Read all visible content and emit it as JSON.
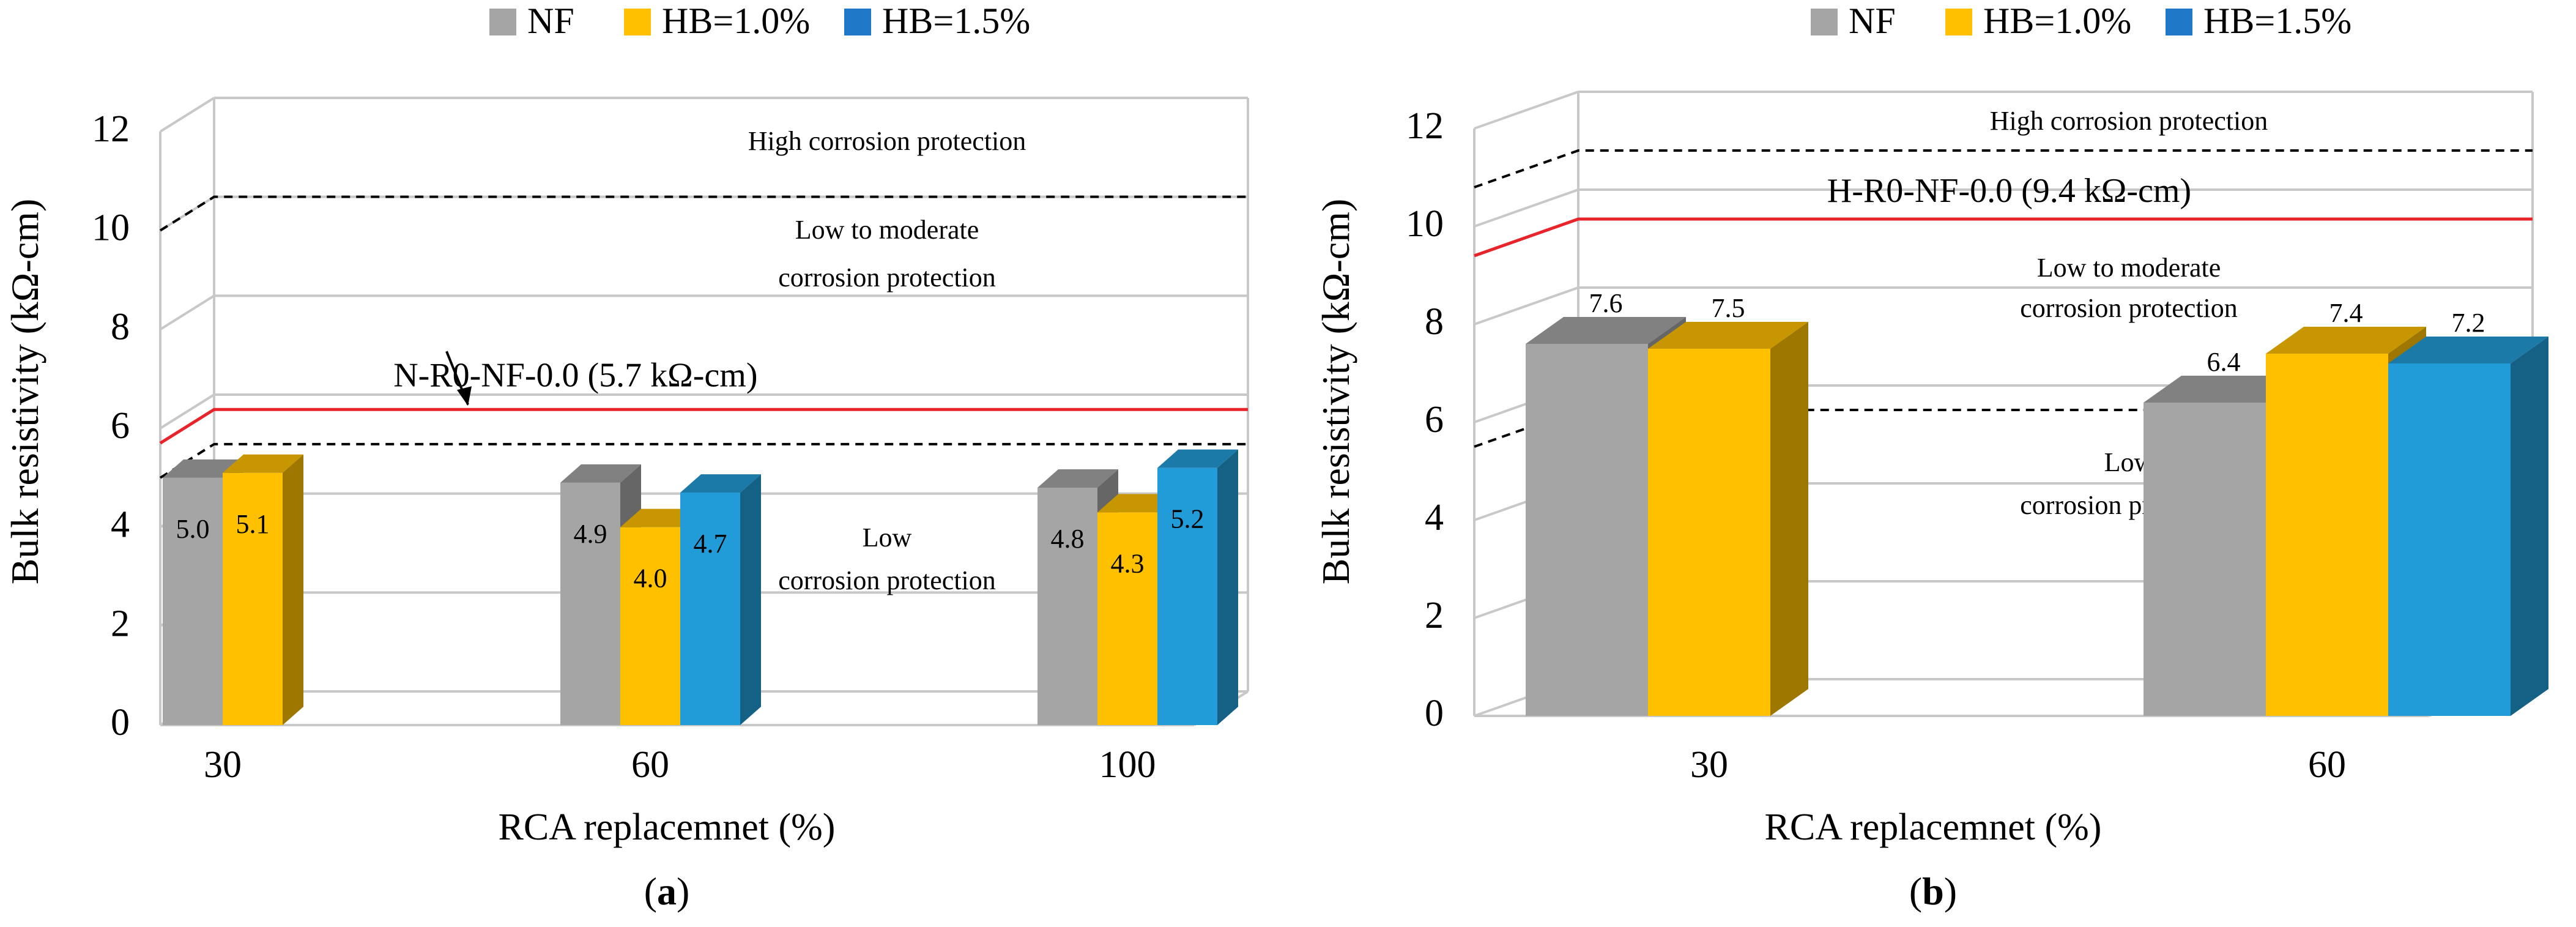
{
  "colors": {
    "nf": "#a5a5a5",
    "hb10": "#ffc000",
    "hb15": "#229cd8",
    "limit_line": "#e8242b",
    "threshold_line": "#000000",
    "grid": "#c8c8c8",
    "legend_nf": "#a5a5a5",
    "legend_hb10": "#ffc000",
    "legend_hb15": "#1f78c8"
  },
  "chart_data": [
    {
      "panel_label": "a",
      "type": "bar",
      "title": "",
      "xlabel": "RCA replacemnet (%)",
      "ylabel": "Bulk resistivity  (kΩ-cm)",
      "ylim": [
        0,
        12
      ],
      "yticks": [
        0,
        2,
        4,
        6,
        8,
        10,
        12
      ],
      "y_tick_labels": [
        "0",
        "2",
        "4",
        "6",
        "8",
        "10",
        "12"
      ],
      "grid": true,
      "legend": "top-center",
      "categories": [
        "30",
        "60",
        "100"
      ],
      "series": [
        {
          "name": "NF",
          "key": "nf",
          "values": [
            5.0,
            4.9,
            4.8
          ],
          "labels": [
            "5.0",
            "4.9",
            "4.8"
          ]
        },
        {
          "name": "HB=1.0%",
          "key": "hb10",
          "values": [
            5.1,
            4.0,
            4.3
          ],
          "labels": [
            "5.1",
            "4.0",
            "4.3"
          ]
        },
        {
          "name": "HB=1.5%",
          "key": "hb15",
          "values": [
            null,
            4.7,
            5.2
          ],
          "labels": [
            "",
            "4.7",
            "5.2"
          ]
        }
      ],
      "reference_lines": [
        {
          "name": "reference-line",
          "value": 5.7,
          "label": "N-R0-NF-0.0 (5.7 kΩ-cm)",
          "style": "solid"
        },
        {
          "name": "high-threshold-line",
          "value": 10,
          "style": "dashed"
        },
        {
          "name": "low-threshold-line",
          "value": 5.0,
          "style": "dashed"
        }
      ],
      "annotations": [
        "High corrosion protection",
        "Low to moderate",
        "corrosion protection",
        "Low",
        "corrosion protection"
      ]
    },
    {
      "panel_label": "b",
      "type": "bar",
      "title": "",
      "xlabel": "RCA replacemnet (%)",
      "ylabel": "Bulk resistivity  (kΩ-cm)",
      "ylim": [
        0,
        12
      ],
      "yticks": [
        0,
        2,
        4,
        6,
        8,
        10,
        12
      ],
      "y_tick_labels": [
        "0",
        "2",
        "4",
        "6",
        "8",
        "10",
        "12"
      ],
      "grid": true,
      "legend": "top-center",
      "categories": [
        "30",
        "60"
      ],
      "series": [
        {
          "name": "NF",
          "key": "nf",
          "values": [
            7.6,
            6.4
          ],
          "labels": [
            "7.6",
            "6.4"
          ]
        },
        {
          "name": "HB=1.0%",
          "key": "hb10",
          "values": [
            7.5,
            7.4
          ],
          "labels": [
            "7.5",
            "7.4"
          ]
        },
        {
          "name": "HB=1.5%",
          "key": "hb15",
          "values": [
            null,
            7.2
          ],
          "labels": [
            "",
            "7.2"
          ]
        }
      ],
      "reference_lines": [
        {
          "name": "reference-line",
          "value": 9.4,
          "label": "H-R0-NF-0.0 (9.4 kΩ-cm)",
          "style": "solid"
        },
        {
          "name": "high-threshold-line",
          "value": 10.8,
          "style": "dashed"
        },
        {
          "name": "low-threshold-line",
          "value": 5.5,
          "style": "dashed"
        }
      ],
      "annotations": [
        "High corrosion protection",
        "Low to moderate",
        "corrosion protection",
        "Low",
        "corrosion protection"
      ]
    }
  ]
}
